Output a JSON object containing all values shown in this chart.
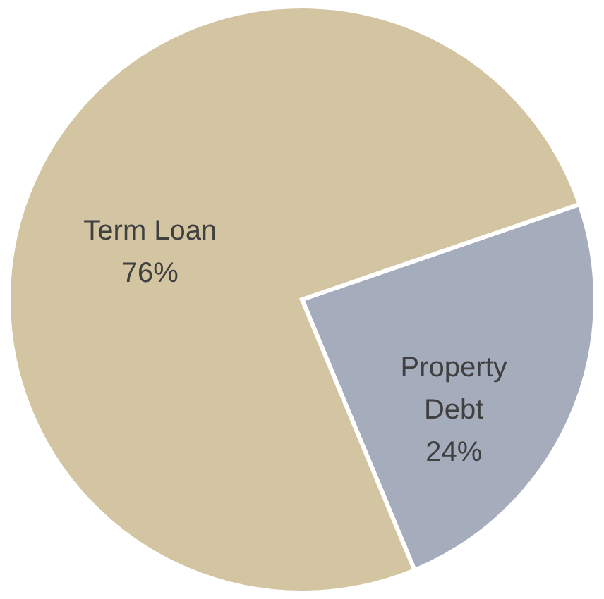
{
  "chart_data": {
    "type": "pie",
    "categories": [
      "Property Debt",
      "Term Loan"
    ],
    "values": [
      24,
      76
    ],
    "colors": [
      "#a5adbd",
      "#d3c5a1"
    ],
    "value_labels": [
      "24%",
      "76%"
    ]
  }
}
